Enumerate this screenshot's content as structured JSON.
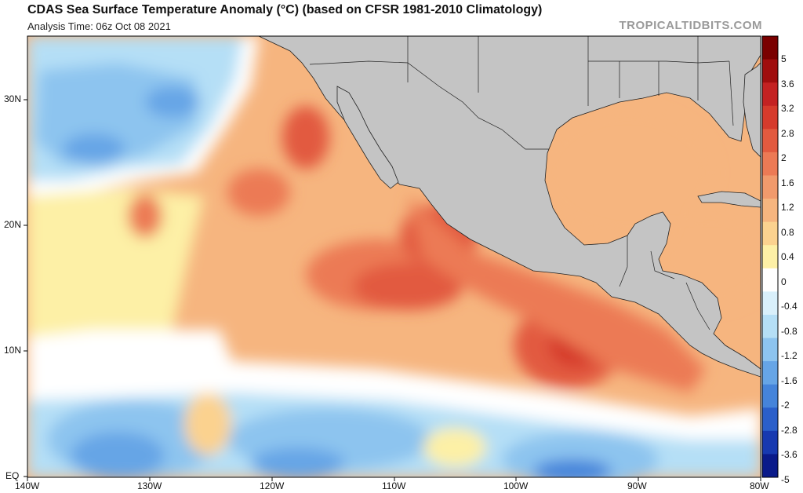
{
  "header": {
    "title": "CDAS Sea Surface Temperature Anomaly (°C) (based on CFSR 1981-2010 Climatology)",
    "subtitle": "Analysis Time: 06z Oct 08 2021",
    "watermark": "TROPICALTIDBITS.COM"
  },
  "axes": {
    "lat_labels": [
      "30N",
      "20N",
      "10N",
      "EQ"
    ],
    "lon_labels": [
      "140W",
      "130W",
      "120W",
      "110W",
      "100W",
      "90W",
      "80W"
    ]
  },
  "colorbar": {
    "labels": [
      "5",
      "3.6",
      "3.2",
      "2.8",
      "2",
      "1.6",
      "1.2",
      "0.8",
      "0.4",
      "0",
      "-0.4",
      "-0.8",
      "-1.2",
      "-1.6",
      "-2",
      "-2.8",
      "-3.6",
      "-5"
    ],
    "colors": [
      "#7a0000",
      "#a00e0e",
      "#c42222",
      "#d63b2c",
      "#e25a3f",
      "#ec7a55",
      "#f19a6c",
      "#f6b57f",
      "#fbd28f",
      "#fdf0a6",
      "#ffffff",
      "#d9f0fb",
      "#b5dff6",
      "#8dc4ef",
      "#66a5e6",
      "#4584da",
      "#2a5fca",
      "#1739b0",
      "#0a1a8a"
    ]
  },
  "colors": {
    "land": "#c4c4c4",
    "border": "#222222",
    "ocean_base": "#f6b57f"
  }
}
